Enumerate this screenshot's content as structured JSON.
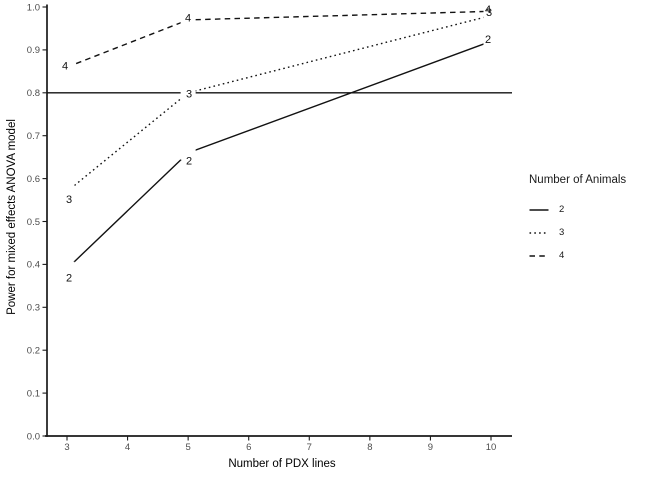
{
  "chart_data": {
    "type": "line",
    "title": "",
    "xlabel": "Number of PDX lines",
    "ylabel": "Power for mixed effects ANOVA model",
    "x": [
      3,
      5,
      10
    ],
    "series": [
      {
        "name": "2",
        "style": "solid",
        "values": [
          0.39,
          0.66,
          0.92
        ]
      },
      {
        "name": "3",
        "style": "dotted",
        "values": [
          0.57,
          0.8,
          0.98
        ]
      },
      {
        "name": "4",
        "style": "dashed",
        "values": [
          0.86,
          0.97,
          0.99
        ]
      }
    ],
    "point_labels": true,
    "reference_line_y": 0.8,
    "xticks": [
      3,
      4,
      5,
      6,
      7,
      8,
      9,
      10
    ],
    "ytick_labels": [
      "0.0",
      "0.1",
      "0.2",
      "0.3",
      "0.4",
      "0.5",
      "0.6",
      "0.7",
      "0.8",
      "0.9",
      "1.0"
    ],
    "xlim": [
      3,
      10
    ],
    "ylim": [
      0.0,
      1.0
    ],
    "grid": false,
    "legend": {
      "title": "Number of Animals",
      "position": "right",
      "entries": [
        {
          "label": "2",
          "style": "solid"
        },
        {
          "label": "3",
          "style": "dotted"
        },
        {
          "label": "4",
          "style": "dashed"
        }
      ]
    },
    "colors": {
      "line": "#000000",
      "axis": "#1a1a1a",
      "tick_text": "#4d4d4d",
      "background": "#ffffff"
    }
  }
}
